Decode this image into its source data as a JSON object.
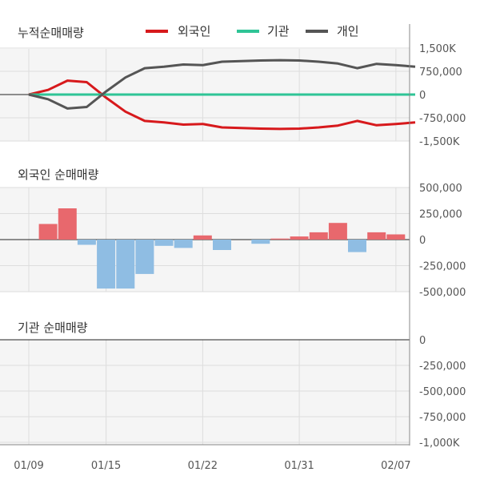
{
  "colors": {
    "foreign": "#d7191c",
    "institution": "#2fc496",
    "individual": "#555555",
    "bar_positive": "#e8686d",
    "bar_negative": "#8fbde3",
    "panel_bg": "#f5f5f5",
    "grid": "#dddddd",
    "zero": "#222222"
  },
  "chart_data": [
    {
      "id": "cumulative",
      "type": "line",
      "title": "누적순매매량",
      "legend": [
        "외국인",
        "기관",
        "개인"
      ],
      "yticks": [
        "1,500K",
        "750,000",
        "0",
        "-750,000",
        "-1,500K"
      ],
      "ytick_values": [
        1500000,
        750000,
        0,
        -750000,
        -1500000
      ],
      "ylim": [
        -1500000,
        1500000
      ],
      "series": [
        {
          "name": "외국인",
          "color_key": "foreign",
          "values": [
            0,
            150000,
            450000,
            400000,
            -100000,
            -550000,
            -850000,
            -900000,
            -970000,
            -950000,
            -1060000,
            -1080000,
            -1100000,
            -1110000,
            -1100000,
            -1060000,
            -1000000,
            -850000,
            -990000,
            -950000,
            -900000
          ]
        },
        {
          "name": "기관",
          "color_key": "institution",
          "values": [
            0,
            0,
            0,
            0,
            0,
            0,
            0,
            0,
            0,
            0,
            0,
            0,
            0,
            0,
            0,
            0,
            0,
            0,
            0,
            0,
            0
          ]
        },
        {
          "name": "개인",
          "color_key": "individual",
          "values": [
            0,
            -150000,
            -450000,
            -400000,
            100000,
            550000,
            850000,
            900000,
            970000,
            950000,
            1060000,
            1080000,
            1100000,
            1110000,
            1100000,
            1060000,
            1000000,
            850000,
            990000,
            950000,
            900000
          ]
        }
      ]
    },
    {
      "id": "foreign_daily",
      "type": "bar",
      "title": "외국인 순매매량",
      "yticks": [
        "500,000",
        "250,000",
        "0",
        "-250,000",
        "-500,000"
      ],
      "ytick_values": [
        500000,
        250000,
        0,
        -250000,
        -500000
      ],
      "ylim": [
        -500000,
        500000
      ],
      "values": [
        150000,
        300000,
        -50000,
        -470000,
        -470000,
        -330000,
        -60000,
        -80000,
        40000,
        -100000,
        0,
        -40000,
        10000,
        30000,
        70000,
        160000,
        -120000,
        70000,
        50000
      ]
    },
    {
      "id": "institution_daily",
      "type": "bar",
      "title": "기관 순매매량",
      "yticks": [
        "0",
        "-250,000",
        "-500,000",
        "-750,000",
        "-1,000K"
      ],
      "ytick_values": [
        0,
        -250000,
        -500000,
        -750000,
        -1000000
      ],
      "ylim": [
        -1000000,
        0
      ],
      "values": []
    }
  ],
  "x_axis": {
    "labels": [
      "01/09",
      "01/15",
      "01/22",
      "01/31",
      "02/07"
    ]
  }
}
